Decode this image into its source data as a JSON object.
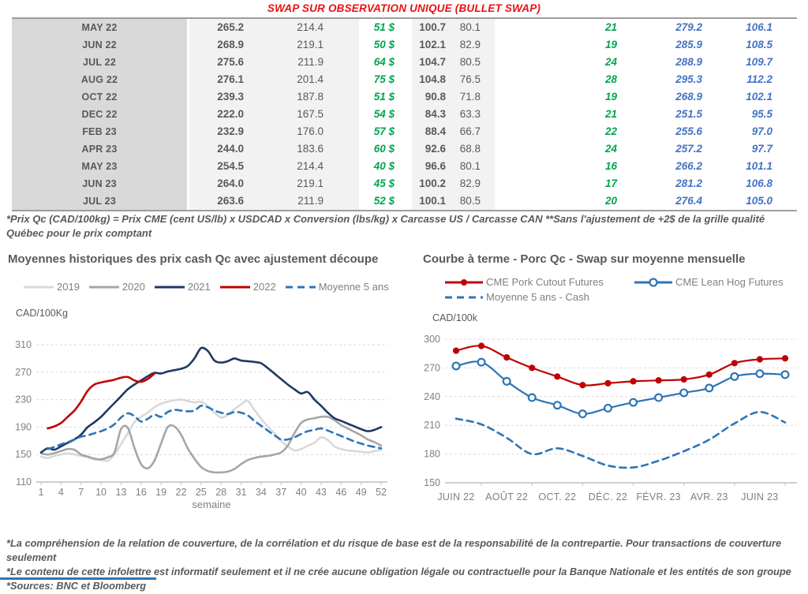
{
  "title": "SWAP SUR OBSERVATION UNIQUE (BULLET SWAP)",
  "colors": {
    "title_red": "#ea1010",
    "green": "#00a550",
    "blue": "#4472c4",
    "dark_text": "#595959",
    "axis_text": "#808080",
    "bottom_bar_blue": "#2e75b6"
  },
  "table": {
    "rows": [
      {
        "month": "MAY 22",
        "values": [
          "265.2",
          "214.4",
          "51 $",
          "100.7",
          "80.1",
          "21",
          "279.2",
          "106.1"
        ]
      },
      {
        "month": "JUN 22",
        "values": [
          "268.9",
          "219.1",
          "50 $",
          "102.1",
          "82.9",
          "19",
          "285.9",
          "108.5"
        ]
      },
      {
        "month": "JUL 22",
        "values": [
          "275.6",
          "211.9",
          "64 $",
          "104.7",
          "80.5",
          "24",
          "288.9",
          "109.7"
        ]
      },
      {
        "month": "AUG 22",
        "values": [
          "276.1",
          "201.4",
          "75 $",
          "104.8",
          "76.5",
          "28",
          "295.3",
          "112.2"
        ]
      },
      {
        "month": "OCT 22",
        "values": [
          "239.3",
          "187.8",
          "51 $",
          "90.8",
          "71.8",
          "19",
          "268.9",
          "102.1"
        ]
      },
      {
        "month": "DEC 22",
        "values": [
          "222.0",
          "167.5",
          "54 $",
          "84.3",
          "63.3",
          "21",
          "251.5",
          "95.5"
        ]
      },
      {
        "month": "FEB 23",
        "values": [
          "232.9",
          "176.0",
          "57 $",
          "88.4",
          "66.7",
          "22",
          "255.6",
          "97.0"
        ]
      },
      {
        "month": "APR 23",
        "values": [
          "244.0",
          "183.6",
          "60 $",
          "92.6",
          "68.8",
          "24",
          "257.2",
          "97.7"
        ]
      },
      {
        "month": "MAY 23",
        "values": [
          "254.5",
          "214.4",
          "40 $",
          "96.6",
          "80.1",
          "16",
          "266.2",
          "101.1"
        ]
      },
      {
        "month": "JUN 23",
        "values": [
          "264.0",
          "219.1",
          "45 $",
          "100.2",
          "82.9",
          "17",
          "281.2",
          "106.8"
        ]
      },
      {
        "month": "JUL 23",
        "values": [
          "263.6",
          "211.9",
          "52 $",
          "100.1",
          "80.5",
          "20",
          "276.4",
          "105.0"
        ]
      }
    ]
  },
  "table_note": "*Prix Qc (CAD/100kg) = Prix CME (cent US/lb) x USDCAD x Conversion (lbs/kg) x Carcasse US / Carcasse CAN **Sans l'ajustement de +2$ de la grille qualité Québec pour le prix comptant",
  "chart_data": [
    {
      "type": "line",
      "title": "Moyennes historiques des prix cash Qc avec ajustement découpe",
      "ylabel": "CAD/100Kg",
      "xlabel": "semaine",
      "ylim": [
        110,
        310
      ],
      "yticks": [
        110,
        150,
        190,
        230,
        270,
        310
      ],
      "xticks": [
        1,
        4,
        7,
        10,
        13,
        16,
        19,
        22,
        25,
        28,
        31,
        34,
        37,
        40,
        43,
        46,
        49,
        52
      ],
      "grid": "horizontal-dashed",
      "legend_position": "top",
      "x": [
        1,
        2,
        3,
        4,
        5,
        6,
        7,
        8,
        9,
        10,
        11,
        12,
        13,
        14,
        15,
        16,
        17,
        18,
        19,
        20,
        21,
        22,
        23,
        24,
        25,
        26,
        27,
        28,
        29,
        30,
        31,
        32,
        33,
        34,
        35,
        36,
        37,
        38,
        39,
        40,
        41,
        42,
        43,
        44,
        45,
        46,
        47,
        48,
        49,
        50,
        51,
        52
      ],
      "series": [
        {
          "name": "2019",
          "color": "#d9d9d9",
          "dash": false,
          "values": [
            147,
            145,
            148,
            150,
            152,
            150,
            148,
            146,
            143,
            142,
            141,
            150,
            165,
            181,
            197,
            205,
            211,
            219,
            224,
            227,
            229,
            230,
            228,
            226,
            227,
            221,
            211,
            204,
            208,
            216,
            223,
            228,
            215,
            202,
            191,
            181,
            170,
            162,
            156,
            158,
            163,
            167,
            175,
            171,
            162,
            158,
            156,
            155,
            154,
            153,
            155,
            157
          ]
        },
        {
          "name": "2020",
          "color": "#a6a6a6",
          "dash": false,
          "values": [
            152,
            150,
            152,
            155,
            158,
            157,
            150,
            147,
            144,
            143,
            146,
            153,
            187,
            189,
            160,
            136,
            130,
            141,
            166,
            190,
            191,
            179,
            159,
            144,
            132,
            126,
            124,
            124,
            125,
            129,
            136,
            142,
            145,
            147,
            148,
            150,
            153,
            163,
            181,
            196,
            201,
            203,
            205,
            205,
            200,
            193,
            188,
            183,
            178,
            172,
            168,
            163
          ]
        },
        {
          "name": "2021",
          "color": "#1f3864",
          "dash": false,
          "values": [
            153,
            159,
            157,
            162,
            167,
            172,
            179,
            190,
            197,
            205,
            215,
            225,
            235,
            245,
            252,
            258,
            264,
            269,
            268,
            271,
            273,
            275,
            279,
            290,
            305,
            301,
            287,
            284,
            286,
            290,
            287,
            286,
            285,
            283,
            276,
            268,
            260,
            252,
            245,
            239,
            241,
            230,
            221,
            211,
            203,
            199,
            195,
            191,
            187,
            184,
            186,
            190
          ]
        },
        {
          "name": "2022",
          "color": "#c00000",
          "dash": false,
          "values": [
            null,
            188,
            191,
            196,
            205,
            214,
            227,
            243,
            252,
            255,
            257,
            259,
            262,
            263,
            258,
            256,
            260,
            268,
            null,
            null,
            null,
            null,
            null,
            null,
            null,
            null,
            null,
            null,
            null,
            null,
            null,
            null,
            null,
            null,
            null,
            null,
            null,
            null,
            null,
            null,
            null,
            null,
            null,
            null,
            null,
            null,
            null,
            null,
            null,
            null,
            null,
            null
          ]
        },
        {
          "name": "Moyenne 5 ans",
          "color": "#2e75b6",
          "dash": true,
          "values": [
            null,
            158,
            161,
            165,
            168,
            172,
            176,
            178,
            181,
            184,
            188,
            194,
            204,
            210,
            206,
            198,
            202,
            208,
            205,
            212,
            215,
            214,
            213,
            214,
            221,
            219,
            214,
            211,
            209,
            212,
            211,
            207,
            199,
            192,
            185,
            178,
            172,
            172,
            175,
            180,
            184,
            186,
            188,
            185,
            181,
            177,
            173,
            169,
            166,
            163,
            161,
            159
          ]
        }
      ]
    },
    {
      "type": "line",
      "title": "Courbe à terme - Porc Qc - Swap sur moyenne mensuelle",
      "ylabel": "CAD/100k",
      "ylim": [
        150,
        300
      ],
      "yticks": [
        150,
        180,
        210,
        240,
        270,
        300
      ],
      "x_count": 14,
      "xtick_positions": [
        0,
        2,
        4,
        6,
        8,
        10,
        12
      ],
      "xtick_labels": [
        "JUIN 22",
        "AOÛT 22",
        "OCT. 22",
        "DÉC. 22",
        "FÉVR. 23",
        "AVR. 23",
        "JUIN 23"
      ],
      "grid": "horizontal-dashed",
      "legend_position": "top",
      "series": [
        {
          "name": "CME Pork Cutout Futures",
          "color": "#c00000",
          "marker": "filled",
          "dash": false,
          "values": [
            288,
            293,
            281,
            270,
            261,
            252,
            254,
            256,
            257,
            258,
            263,
            275,
            279,
            280
          ]
        },
        {
          "name": "CME Lean Hog Futures",
          "color": "#2e75b6",
          "marker": "open",
          "dash": false,
          "values": [
            272,
            276,
            256,
            239,
            231,
            222,
            228,
            234,
            239,
            244,
            249,
            261,
            264,
            263
          ]
        },
        {
          "name": "Moyenne 5 ans - Cash",
          "color": "#2e75b6",
          "dash": true,
          "values": [
            217,
            211,
            197,
            180,
            186,
            178,
            168,
            166,
            173,
            183,
            195,
            212,
            224,
            213
          ]
        }
      ]
    }
  ],
  "footnotes": [
    "*La compréhension de la relation de couverture, de la corrélation et du risque de base est de la responsabilité de la contrepartie. Pour transactions de couverture seulement",
    "*Le contenu de cette infolettre est informatif seulement et il ne crée aucune obligation légale ou contractuelle pour la Banque Nationale et les entités de son groupe",
    "*Sources: BNC et Bloomberg"
  ]
}
